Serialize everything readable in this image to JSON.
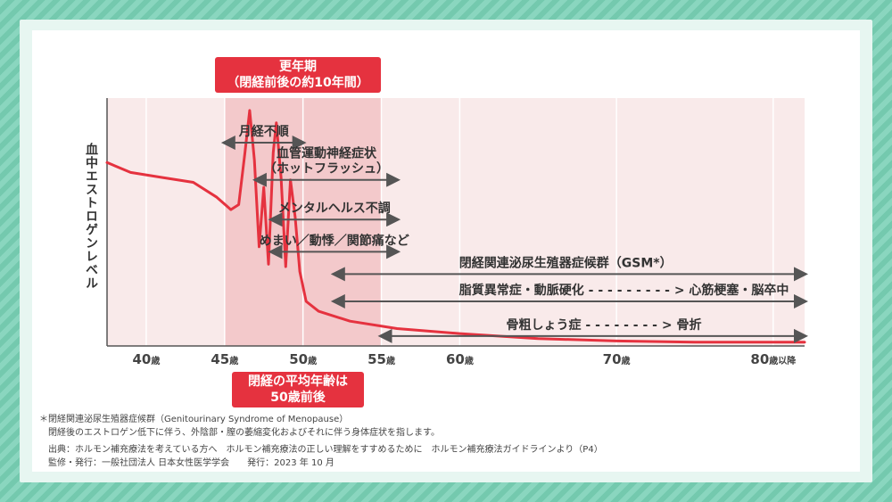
{
  "chart_data": {
    "type": "line",
    "ylabel": "血中エストロゲンレベル",
    "x_ticks": [
      {
        "value": 40,
        "num": "40",
        "unit": "歳"
      },
      {
        "value": 45,
        "num": "45",
        "unit": "歳"
      },
      {
        "value": 50,
        "num": "50",
        "unit": "歳"
      },
      {
        "value": 55,
        "num": "55",
        "unit": "歳"
      },
      {
        "value": 60,
        "num": "60",
        "unit": "歳"
      },
      {
        "value": 70,
        "num": "70",
        "unit": "歳"
      },
      {
        "value": 80,
        "num": "80",
        "unit": "歳以降"
      }
    ],
    "xlim": [
      37.5,
      82
    ],
    "ylim": [
      0,
      100
    ],
    "shaded_region": {
      "from": 45,
      "to": 55,
      "label_line1": "更年期",
      "label_line2": "（閉経前後の約10年間）"
    },
    "menopause_marker": {
      "x": 50,
      "line1": "閉経の平均年齢は",
      "line2": "50歳前後"
    },
    "series": [
      {
        "color": "#e5323f",
        "points": [
          [
            37.5,
            74
          ],
          [
            39,
            70
          ],
          [
            41,
            68
          ],
          [
            43,
            66
          ],
          [
            44.5,
            60
          ],
          [
            45.4,
            55
          ],
          [
            45.9,
            57
          ],
          [
            46.3,
            78
          ],
          [
            46.6,
            95
          ],
          [
            46.9,
            75
          ],
          [
            47.2,
            40
          ],
          [
            47.5,
            64
          ],
          [
            47.8,
            33
          ],
          [
            48.1,
            78
          ],
          [
            48.3,
            90
          ],
          [
            48.6,
            68
          ],
          [
            48.9,
            32
          ],
          [
            49.2,
            67
          ],
          [
            49.5,
            52
          ],
          [
            49.8,
            30
          ],
          [
            50.2,
            18
          ],
          [
            51,
            14
          ],
          [
            53,
            10
          ],
          [
            56,
            7
          ],
          [
            60,
            5
          ],
          [
            65,
            3
          ],
          [
            70,
            2
          ],
          [
            75,
            1.5
          ],
          [
            82,
            1.5
          ]
        ]
      }
    ],
    "annotations": [
      {
        "text": "月経不順",
        "from": 45,
        "to": 50,
        "y": 82
      },
      {
        "text": "血管運動神経症状",
        "text2": "（ホットフラッシュ）",
        "from": 47,
        "to": 56,
        "y": 67
      },
      {
        "text": "メンタルヘルス不調",
        "from": 48,
        "to": 56,
        "y": 51
      },
      {
        "text": "めまい／動悸／関節痛など",
        "from": 48,
        "to": 56,
        "y": 38
      },
      {
        "text": "閉経関連泌尿生殖器症候群（GSM*）",
        "from": 52,
        "to": 82,
        "y": 29
      },
      {
        "text": "脂質異常症・動脈硬化 - - - - - - - - - > 心筋梗塞・脳卒中",
        "from": 52,
        "to": 82,
        "y": 18
      },
      {
        "text": "骨粗しょう症 - - - - - - - - > 骨折",
        "from": 55,
        "to": 82,
        "y": 4
      }
    ]
  },
  "footnote": {
    "line1": "＊閉経関連泌尿生殖器症候群（Genitourinary Syndrome of Menopause）",
    "line2": "閉経後のエストロゲン低下に伴う、外陰部・膣の萎縮変化およびそれに伴う身体症状を指します。",
    "source": "出典：ホルモン補充療法を考えている方へ　ホルモン補充療法の正しい理解をすすめるために　ホルモン補充療法ガイドラインより（P4）",
    "supervisor": "監修・発行：一般社団法人 日本女性医学学会　　発行：2023 年 10 月"
  }
}
